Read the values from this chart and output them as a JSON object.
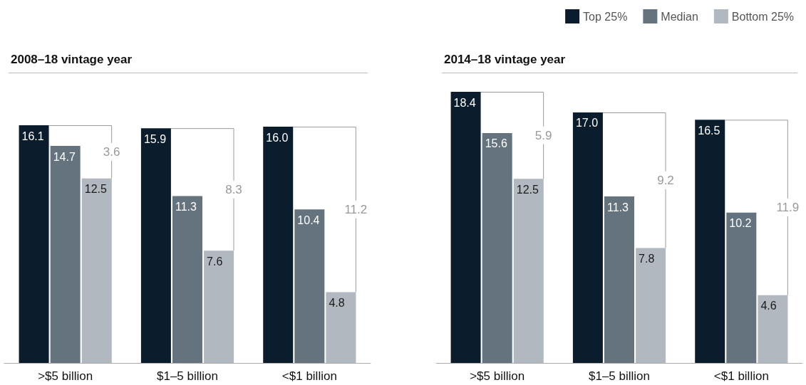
{
  "chart_data": [
    {
      "type": "bar",
      "title": "2008–18 vintage year",
      "categories": [
        ">$5 billion",
        "$1–5 billion",
        "<$1 billion"
      ],
      "series": [
        {
          "color": "#0b1d2c",
          "values": [
            16.1,
            15.9,
            16.0
          ],
          "value_labels": [
            "16.1",
            "15.9",
            "16.0"
          ]
        },
        {
          "color": "#64737d",
          "values": [
            14.7,
            11.3,
            10.4
          ],
          "value_labels": [
            "14.7",
            "11.3",
            "10.4"
          ]
        },
        {
          "color": "#b1b8bf",
          "values": [
            12.5,
            7.6,
            4.8
          ],
          "value_labels": [
            "12.5",
            "7.6",
            "4.8"
          ]
        }
      ],
      "legend": false,
      "annotations": [
        "3.6",
        "8.3",
        "11.2"
      ]
    },
    {
      "type": "bar",
      "title": "2014–18 vintage year",
      "categories": [
        ">$5 billion",
        "$1–5 billion",
        "<$1 billion"
      ],
      "series": [
        {
          "name": "Top 25%",
          "color": "#0b1d2c",
          "values": [
            18.4,
            17.0,
            16.5
          ],
          "value_labels": [
            "18.4",
            "17.0",
            "16.5"
          ]
        },
        {
          "name": "Median",
          "color": "#64737d",
          "values": [
            15.6,
            11.3,
            10.2
          ],
          "value_labels": [
            "15.6",
            "11.3",
            "10.2"
          ]
        },
        {
          "name": "Bottom 25%",
          "color": "#b1b8bf",
          "values": [
            12.5,
            7.8,
            4.6
          ],
          "value_labels": [
            "12.5",
            "7.8",
            "4.6"
          ]
        }
      ],
      "legend": "top right",
      "annotations": [
        "5.9",
        "9.2",
        "11.9"
      ]
    }
  ]
}
